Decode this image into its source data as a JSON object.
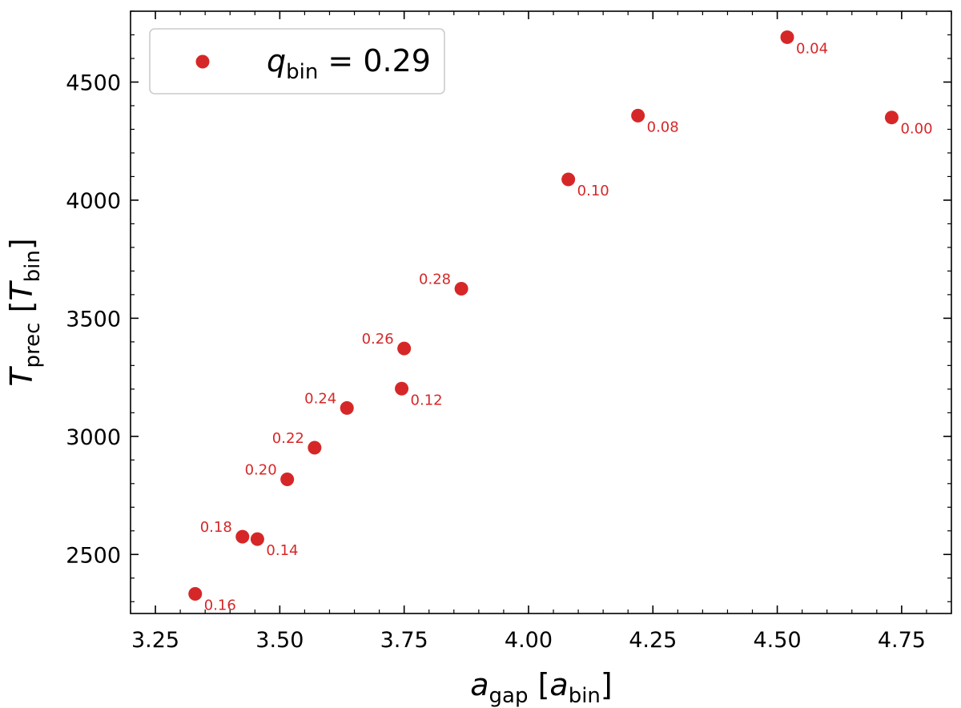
{
  "chart_data": {
    "type": "scatter",
    "title": "",
    "xlabel": {
      "main": "a",
      "sub": "gap",
      "bracket_main": "a",
      "bracket_sub": "bin"
    },
    "ylabel": {
      "main": "T",
      "sub": "prec",
      "bracket_main": "T",
      "bracket_sub": "bin"
    },
    "xlim": [
      3.2,
      4.85
    ],
    "ylim": [
      2250,
      4800
    ],
    "xticks": [
      3.25,
      3.5,
      3.75,
      4.0,
      4.25,
      4.5,
      4.75
    ],
    "xtick_labels": [
      "3.25",
      "3.50",
      "3.75",
      "4.00",
      "4.25",
      "4.50",
      "4.75"
    ],
    "yticks": [
      2500,
      3000,
      3500,
      4000,
      4500
    ],
    "ytick_labels": [
      "2500",
      "3000",
      "3500",
      "4000",
      "4500"
    ],
    "grid": false,
    "legend": {
      "position": "top-left",
      "main": "q",
      "sub": "bin",
      "rest": " = 0.29"
    },
    "series": [
      {
        "name": "q_bin = 0.29",
        "color": "#d62728",
        "points": [
          {
            "x": 4.73,
            "y": 4350,
            "label": "0.00",
            "side": "right"
          },
          {
            "x": 4.52,
            "y": 4690,
            "label": "0.04",
            "side": "right"
          },
          {
            "x": 4.22,
            "y": 4358,
            "label": "0.08",
            "side": "right"
          },
          {
            "x": 4.08,
            "y": 4088,
            "label": "0.10",
            "side": "right"
          },
          {
            "x": 3.745,
            "y": 3202,
            "label": "0.12",
            "side": "right"
          },
          {
            "x": 3.455,
            "y": 2565,
            "label": "0.14",
            "side": "right"
          },
          {
            "x": 3.33,
            "y": 2333,
            "label": "0.16",
            "side": "right"
          },
          {
            "x": 3.425,
            "y": 2575,
            "label": "0.18",
            "side": "left"
          },
          {
            "x": 3.515,
            "y": 2818,
            "label": "0.20",
            "side": "left"
          },
          {
            "x": 3.57,
            "y": 2952,
            "label": "0.22",
            "side": "left"
          },
          {
            "x": 3.635,
            "y": 3120,
            "label": "0.24",
            "side": "left"
          },
          {
            "x": 3.75,
            "y": 3372,
            "label": "0.26",
            "side": "left"
          },
          {
            "x": 3.865,
            "y": 3625,
            "label": "0.28",
            "side": "left"
          }
        ]
      }
    ]
  }
}
